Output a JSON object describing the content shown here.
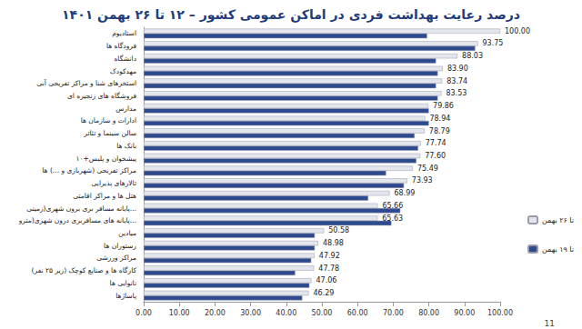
{
  "chart_data": {
    "type": "bar",
    "title": "درصد رعایت بهداشت فردی در اماکن عمومی کشور – ۱۲ تا ۲۶ بهمن ۱۴۰۱",
    "orientation": "horizontal",
    "categories": [
      "استادیوم",
      "فرودگاه ها",
      "دانشگاه",
      "مهدکودک",
      "استخرهای شنا و مراکز تفریحی آبی",
      "فروشگاه های زنجیره ای",
      "مدارس",
      "ادارات و سازمان ها",
      "سالن سینما و تئاتر",
      "بانک ها",
      "پیشخوان و پلیس+۱۰",
      "مراکز تفریحی (شهربازی و ...) ها",
      "تالارهای پذیرایی",
      "هتل ها و مراکز اقامتی",
      "پایانه مسافر بری برون شهری(زمینی...",
      "پایانه های مسافربری درون شهری(مترو...",
      "میادین",
      "رستوران ها",
      "مراکز ورزشی",
      "کارگاه ها و صنایع کوچک (زیر ۲۵ نفر)",
      "نانوایی ها",
      "پاساژها"
    ],
    "series": [
      {
        "name": "تا ۲۶ بهمن",
        "color": "#e4e6ee",
        "values": [
          100,
          93.75,
          88.03,
          83.9,
          83.74,
          83.53,
          79.86,
          78.94,
          78.79,
          77.74,
          77.6,
          75.49,
          73.93,
          68.99,
          65.66,
          65.63,
          50.58,
          48.98,
          47.92,
          47.78,
          47.06,
          46.29
        ],
        "value_labels": [
          "100.00",
          "93.75",
          "88.03",
          "83.90",
          "83.74",
          "83.53",
          "79.86",
          "78.94",
          "78.79",
          "77.74",
          "77.60",
          "75.49",
          "73.93",
          "68.99",
          "65.66",
          "65.63",
          "50.58",
          "48.98",
          "47.92",
          "47.78",
          "47.06",
          "46.29"
        ]
      },
      {
        "name": "تا ۱۹ بهمن",
        "color": "#2e4a8f",
        "values": [
          79.5,
          93,
          82,
          82.5,
          82,
          82.5,
          80,
          80,
          76,
          77,
          76.5,
          68,
          73,
          63,
          72,
          69.5,
          48,
          48,
          47,
          42.5,
          46.5,
          44.5
        ]
      }
    ],
    "xlim": [
      0,
      100
    ],
    "xticks": [
      {
        "value": 0,
        "label": "0.00"
      },
      {
        "value": 10,
        "label": "10.00"
      },
      {
        "value": 20,
        "label": "20.00"
      },
      {
        "value": 30,
        "label": "30.00"
      },
      {
        "value": 40,
        "label": "40.00"
      },
      {
        "value": 50,
        "label": "50.00"
      },
      {
        "value": 60,
        "label": "60.00"
      },
      {
        "value": 70,
        "label": "70.00"
      },
      {
        "value": 80,
        "label": "80.00"
      },
      {
        "value": 90,
        "label": "90.00"
      },
      {
        "value": 100,
        "label": "100.00"
      }
    ],
    "grid": false,
    "legend": "right",
    "data_labels": true,
    "annotations": [
      "11"
    ]
  }
}
